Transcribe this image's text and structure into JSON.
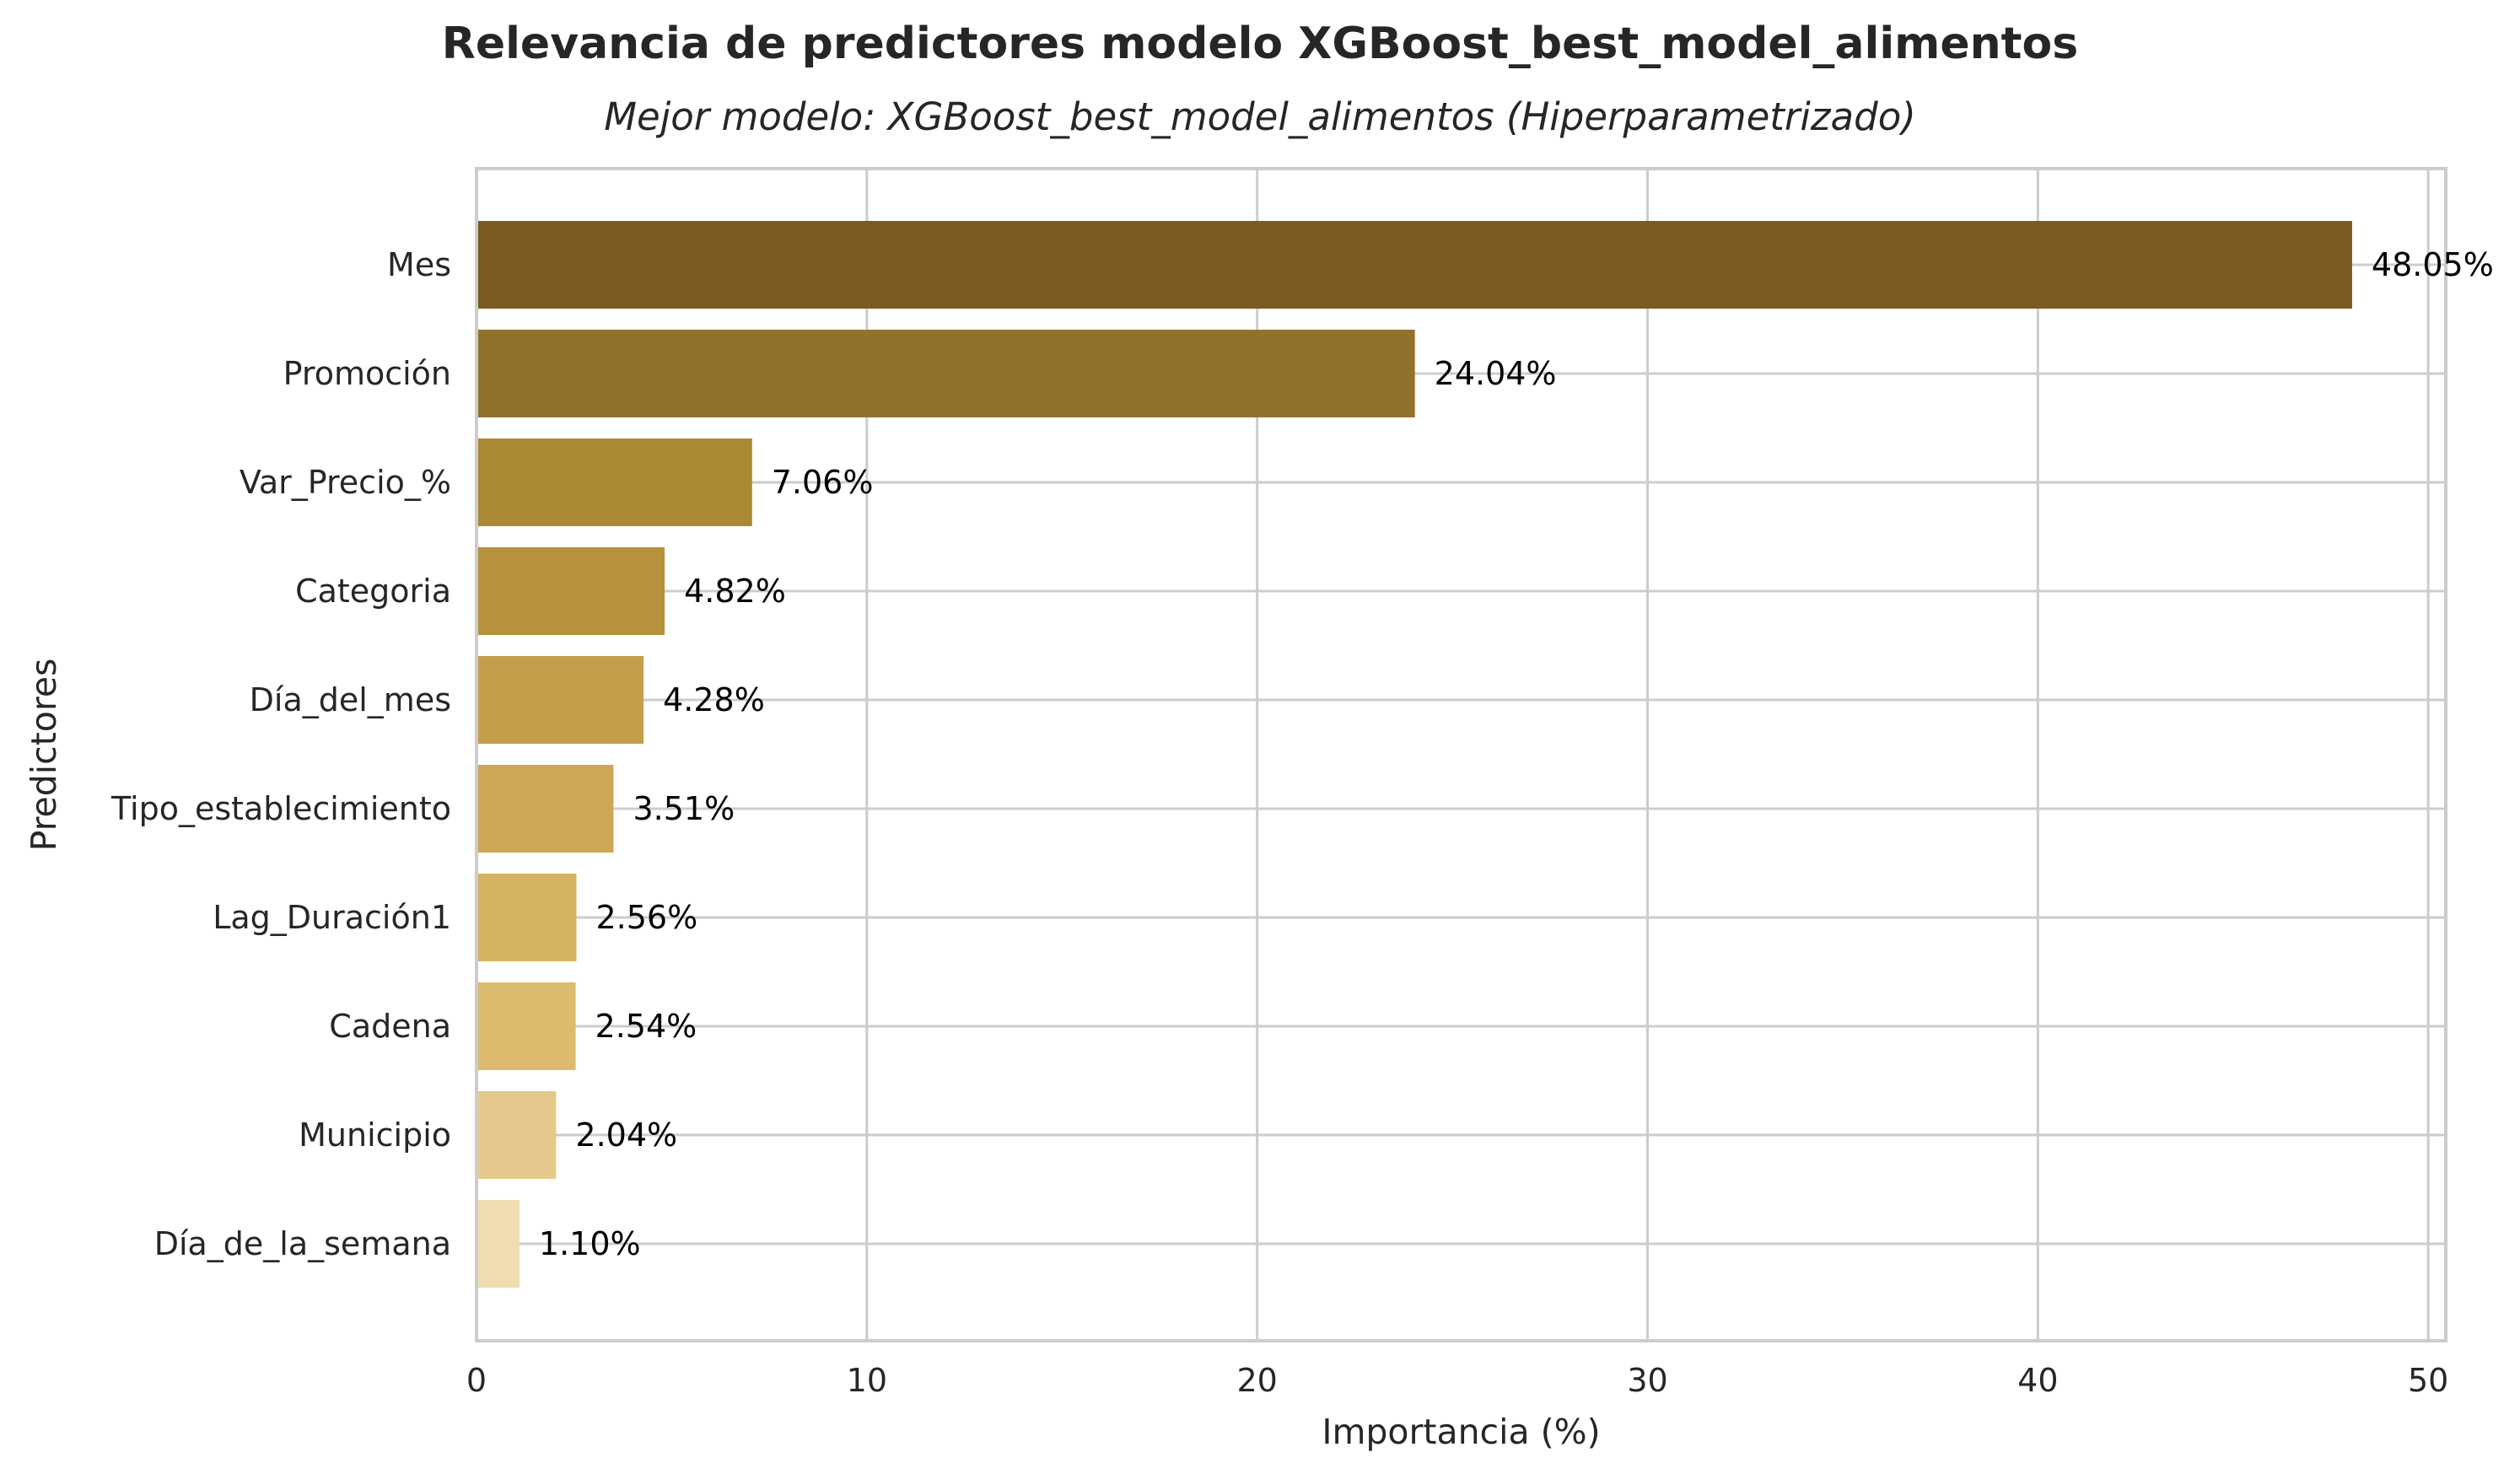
{
  "chart_data": {
    "type": "bar",
    "orientation": "horizontal",
    "title": "Relevancia de predictores modelo XGBoost_best_model_alimentos",
    "subtitle": "Mejor modelo: XGBoost_best_model_alimentos (Hiperparametrizado)",
    "xlabel": "Importancia (%)",
    "ylabel": "Predictores",
    "xlim": [
      0,
      50.45
    ],
    "xticks": [
      0,
      10,
      20,
      30,
      40,
      50
    ],
    "grid": true,
    "categories": [
      "Mes",
      "Promoción",
      "Var_Precio_%",
      "Categoria",
      "Día_del_mes",
      "Tipo_establecimiento",
      "Lag_Duración1",
      "Cadena",
      "Municipio",
      "Día_de_la_semana"
    ],
    "values": [
      48.05,
      24.04,
      7.06,
      4.82,
      4.28,
      3.51,
      2.56,
      2.54,
      2.04,
      1.1
    ],
    "data_labels": [
      "48.05%",
      "24.04%",
      "7.06%",
      "4.82%",
      "4.28%",
      "3.51%",
      "2.56%",
      "2.54%",
      "2.04%",
      "1.10%"
    ],
    "colors": [
      "#7b5b22",
      "#92712d",
      "#ab8834",
      "#b8913c",
      "#c49f4b",
      "#cea756",
      "#d6b362",
      "#dcbb6e",
      "#e5c98c",
      "#efdcb0"
    ]
  }
}
